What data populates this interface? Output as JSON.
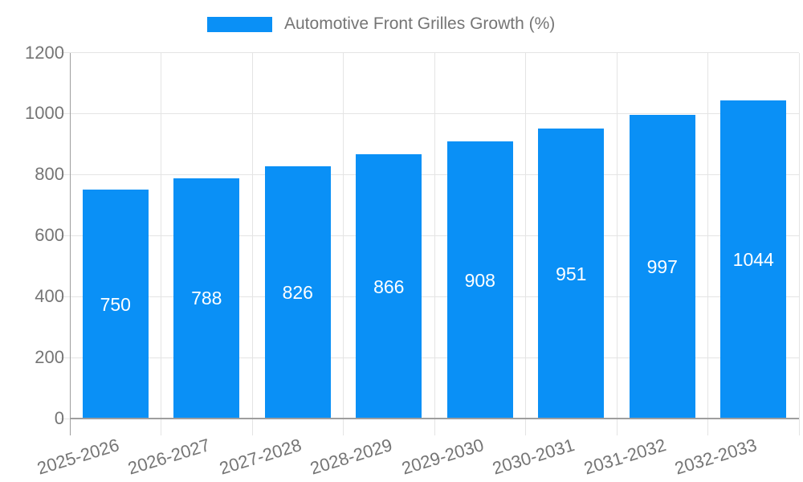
{
  "legend": {
    "label": "Automotive Front Grilles Growth (%)"
  },
  "chart_data": {
    "type": "bar",
    "title": "Automotive Front Grilles Growth (%)",
    "categories": [
      "2025-2026",
      "2026-2027",
      "2027-2028",
      "2028-2029",
      "2029-2030",
      "2030-2031",
      "2031-2032",
      "2032-2033"
    ],
    "values": [
      750,
      788,
      826,
      866,
      908,
      951,
      997,
      1044
    ],
    "xlabel": "",
    "ylabel": "",
    "ylim": [
      0,
      1200
    ],
    "yticks": [
      0,
      200,
      400,
      600,
      800,
      1000,
      1200
    ],
    "grid": true,
    "legend_position": "top",
    "colors": {
      "bar": "#0a90f6",
      "value_label": "#ffffff",
      "axis_text": "#757575",
      "legend_text": "#757575",
      "gridline": "#e4e4e4",
      "axis_line": "#9e9e9e",
      "background": "#ffffff"
    }
  }
}
